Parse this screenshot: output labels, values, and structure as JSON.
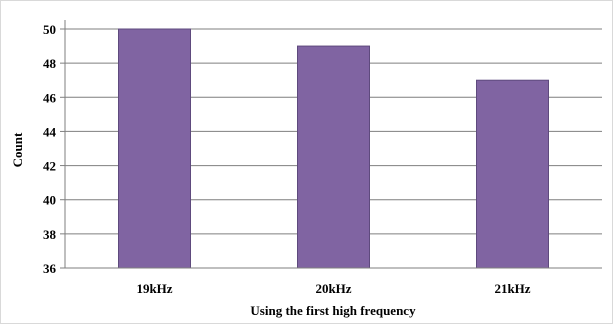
{
  "chart_data": {
    "type": "bar",
    "categories": [
      "19kHz",
      "20kHz",
      "21kHz"
    ],
    "values": [
      50,
      49,
      47
    ],
    "title": "",
    "xlabel": "Using the first high frequency",
    "ylabel": "Count",
    "ylim": [
      36,
      50
    ],
    "yticks": [
      36,
      38,
      40,
      42,
      44,
      46,
      48,
      50
    ],
    "grid": true,
    "legend": "none",
    "bar_color": "#8064a2",
    "bar_edge_color": "#5e4a7d"
  }
}
